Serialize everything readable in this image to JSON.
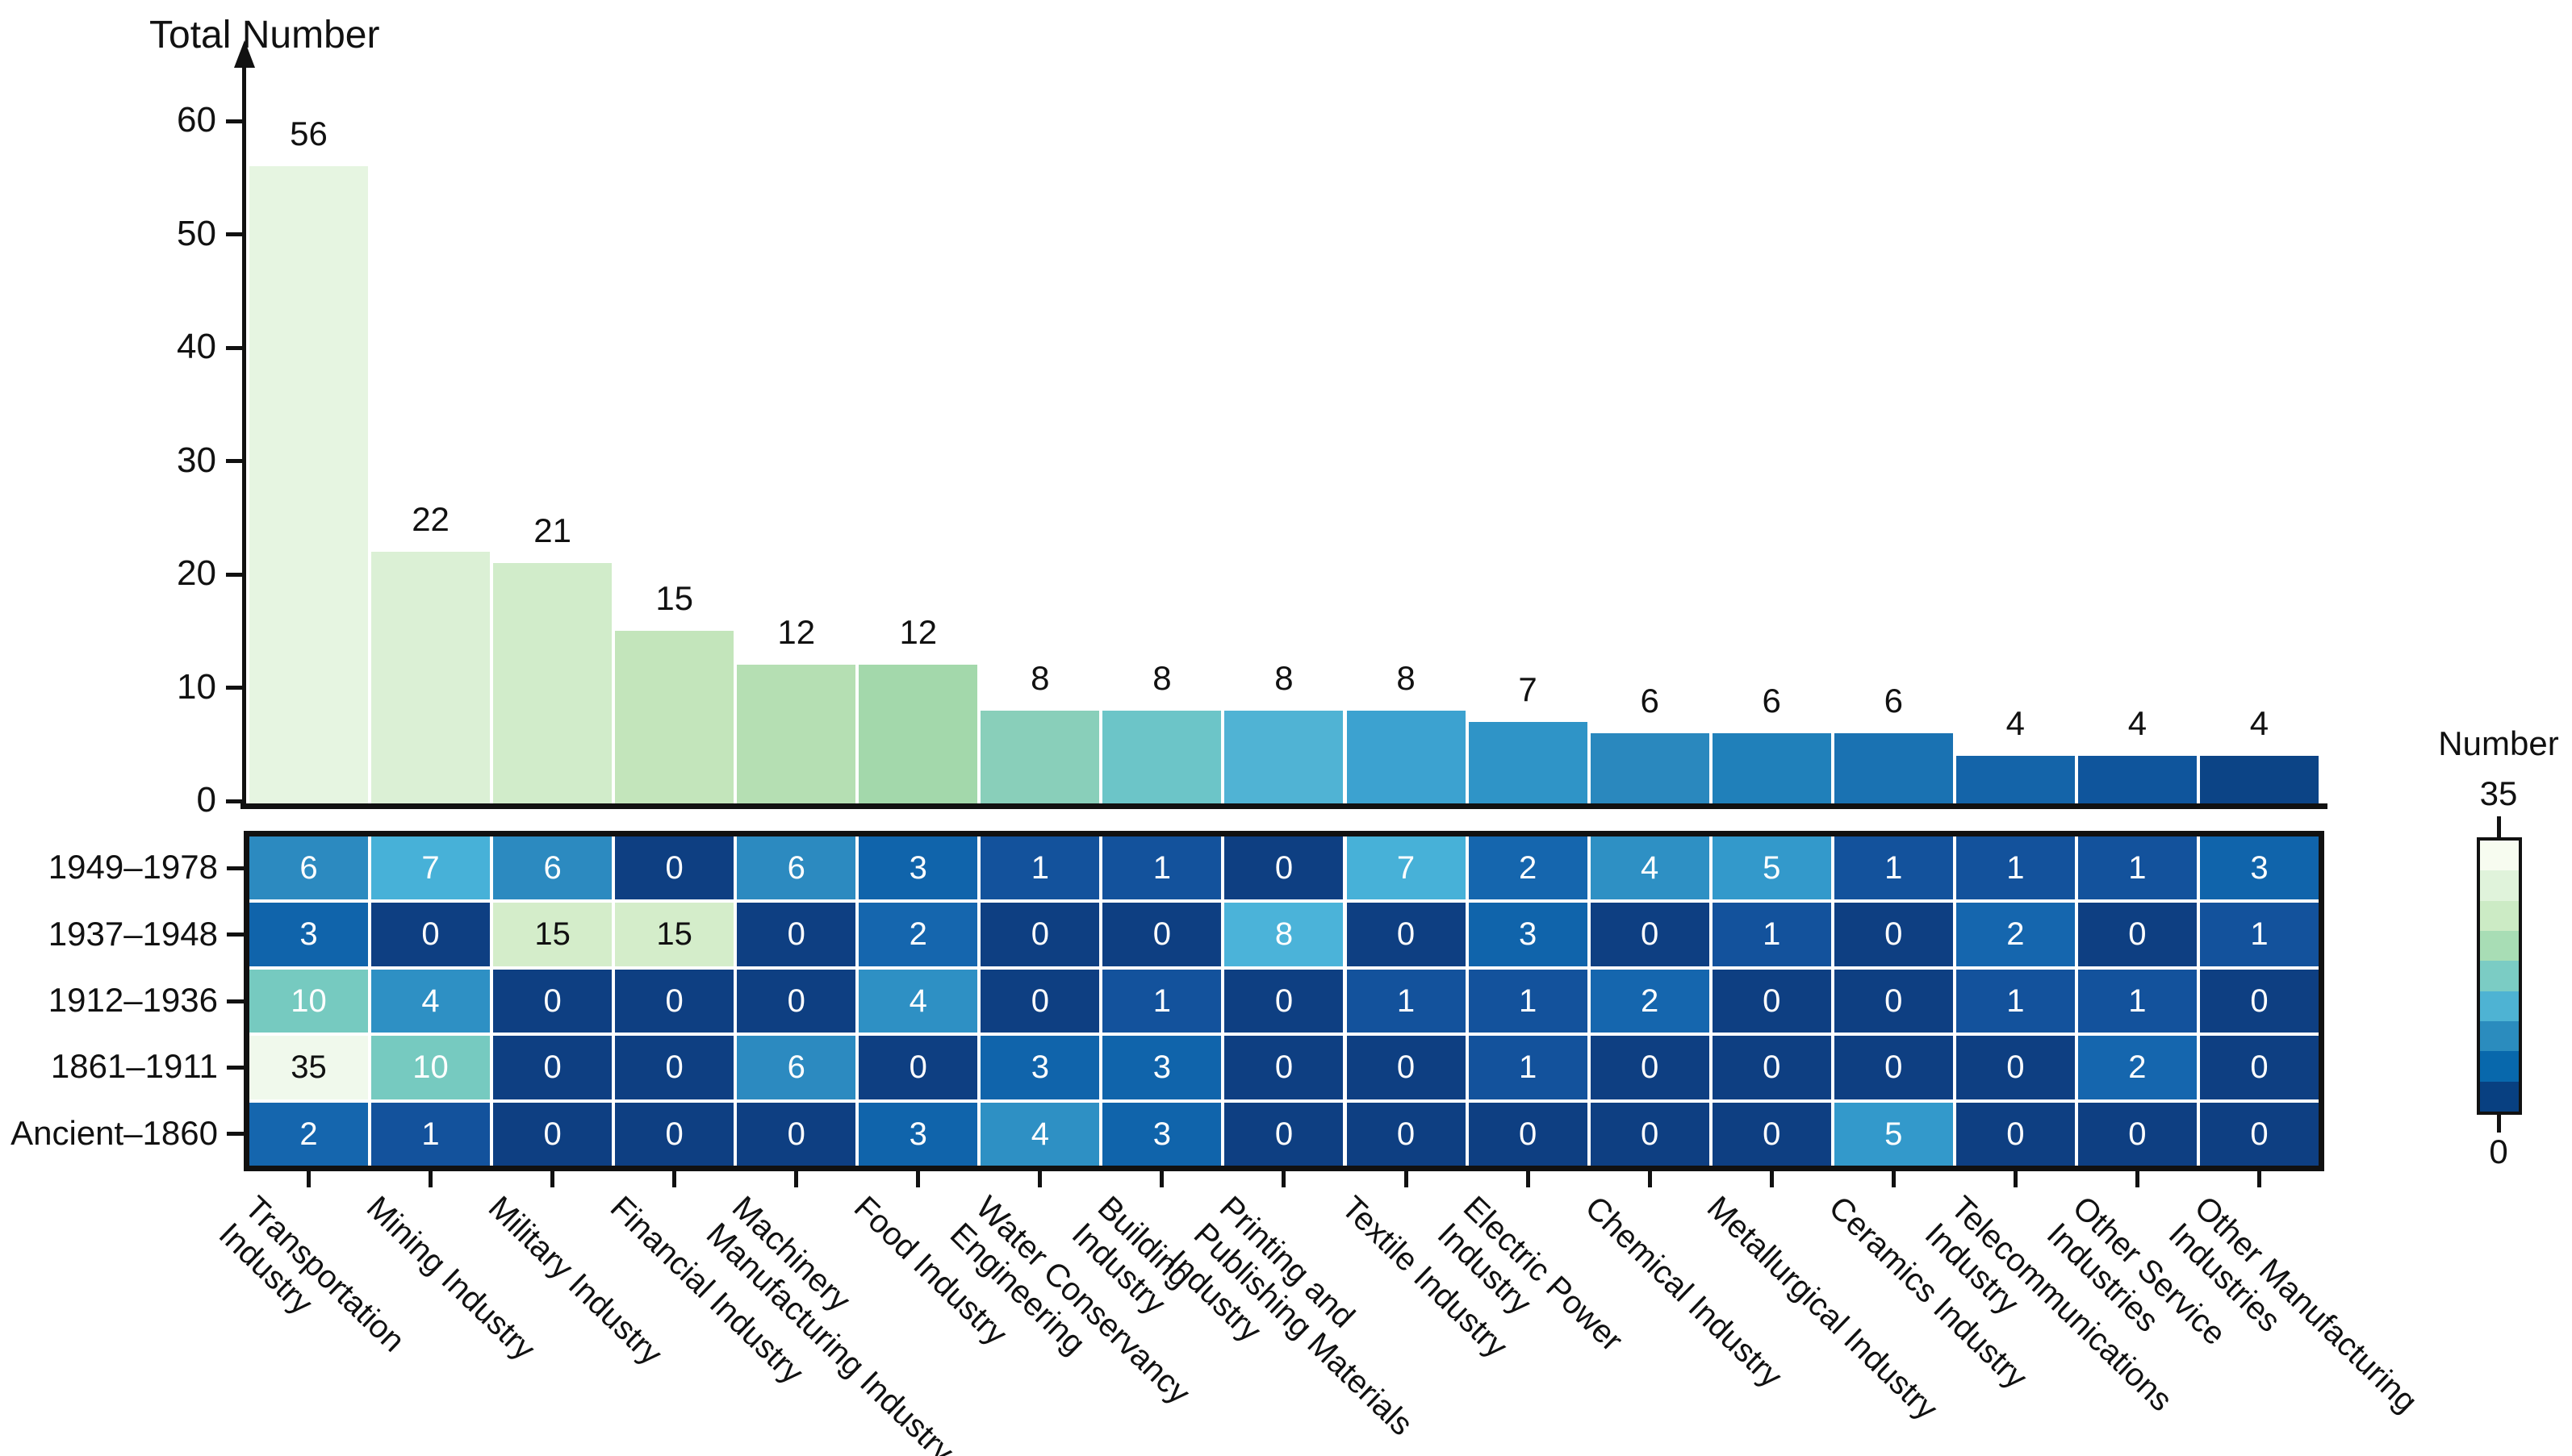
{
  "figure": {
    "ylabel": "Total Number"
  },
  "colorbar": {
    "title": "Number",
    "max_label": "35",
    "min_label": "0",
    "band_colors_top_to_bottom": [
      "#f7fcf0",
      "#e0f3db",
      "#ccebc5",
      "#a8ddb5",
      "#7bccc4",
      "#4eb3d3",
      "#2b8cbe",
      "#0868ac",
      "#084081"
    ]
  },
  "chart_data": [
    {
      "type": "bar",
      "title": "",
      "ylabel": "Total Number",
      "xlabel": "",
      "ylim": [
        0,
        62
      ],
      "yticks": [
        0,
        10,
        20,
        30,
        40,
        50,
        60
      ],
      "grid": false,
      "categories": [
        "Transportation Industry",
        "Mining Industry",
        "Military Industry",
        "Financial Industry",
        "Machinery Manufacturing Industry",
        "Food Industry",
        "Water Conservancy Engineering",
        "Building Industry",
        "Printing and Publishing Materials Industry",
        "Textile Industry",
        "Electric Power Industry",
        "Chemical Industry",
        "Metallurgical Industry",
        "Ceramics Industry",
        "Telecommunications Industry",
        "Other Service Industries",
        "Other Manufacturing Industries"
      ],
      "values": [
        56,
        22,
        21,
        15,
        12,
        12,
        8,
        8,
        8,
        8,
        7,
        6,
        6,
        6,
        4,
        4,
        4
      ],
      "bar_colors": [
        "#e6f5e1",
        "#dbf0d5",
        "#d1ecca",
        "#c3e5bb",
        "#b5dfb3",
        "#a3d8ab",
        "#89cfba",
        "#6cc5c8",
        "#50b3d4",
        "#3ca2d0",
        "#2f94c7",
        "#2a88be",
        "#2080ba",
        "#1a72b2",
        "#1464a9",
        "#0f559c",
        "#0c4486"
      ]
    },
    {
      "type": "heatmap",
      "rows": [
        "1949–1978",
        "1937–1948",
        "1912–1936",
        "1861–1911",
        "Ancient–1860"
      ],
      "columns": [
        "Transportation Industry",
        "Mining Industry",
        "Military Industry",
        "Financial Industry",
        "Machinery Manufacturing Industry",
        "Food Industry",
        "Water Conservancy Engineering",
        "Building Industry",
        "Printing and Publishing Materials Industry",
        "Textile Industry",
        "Electric Power Industry",
        "Chemical Industry",
        "Metallurgical Industry",
        "Ceramics Industry",
        "Telecommunications Industry",
        "Other Service Industries",
        "Other Manufacturing Industries"
      ],
      "column_display_lines": [
        [
          "Transportation",
          "Industry"
        ],
        [
          "Mining Industry"
        ],
        [
          "Military Industry"
        ],
        [
          "Financial Industry"
        ],
        [
          "Machinery",
          "Manufacturing Industry"
        ],
        [
          "Food Industry"
        ],
        [
          "Water Conservancy",
          "Engineering"
        ],
        [
          "Building",
          "Industry"
        ],
        [
          "Printing and",
          "Publishing Materials",
          "Industry"
        ],
        [
          "Textile Industry"
        ],
        [
          "Electric Power",
          "Industry"
        ],
        [
          "Chemical Industry"
        ],
        [
          "Metallurgical Industry"
        ],
        [
          "Ceramics Industry"
        ],
        [
          "Telecommunications",
          "Industry"
        ],
        [
          "Other Service",
          "Industries"
        ],
        [
          "Other Manufacturing",
          "Industries"
        ]
      ],
      "values": [
        [
          6,
          7,
          6,
          0,
          6,
          3,
          1,
          1,
          0,
          7,
          2,
          4,
          5,
          1,
          1,
          1,
          3
        ],
        [
          3,
          0,
          15,
          15,
          0,
          2,
          0,
          0,
          8,
          0,
          3,
          0,
          1,
          0,
          2,
          0,
          1
        ],
        [
          10,
          4,
          0,
          0,
          0,
          4,
          0,
          1,
          0,
          1,
          1,
          2,
          0,
          0,
          1,
          1,
          0
        ],
        [
          35,
          10,
          0,
          0,
          6,
          0,
          3,
          3,
          0,
          0,
          1,
          0,
          0,
          0,
          0,
          2,
          0
        ],
        [
          2,
          1,
          0,
          0,
          0,
          3,
          4,
          3,
          0,
          0,
          0,
          0,
          0,
          5,
          0,
          0,
          0
        ]
      ],
      "colorbar": {
        "label": "Number",
        "min": 0,
        "max": 35
      },
      "value_colors": {
        "0": "#0e3f82",
        "1": "#13529c",
        "2": "#1566ae",
        "3": "#1064ab",
        "4": "#2e90c4",
        "5": "#3399cb",
        "6": "#2c8ac0",
        "7": "#47b1d8",
        "8": "#4bb3d9",
        "10": "#76cac0",
        "15": "#d4edca",
        "35": "#f0f9ec"
      },
      "dark_text_values": [
        15,
        35
      ]
    }
  ]
}
